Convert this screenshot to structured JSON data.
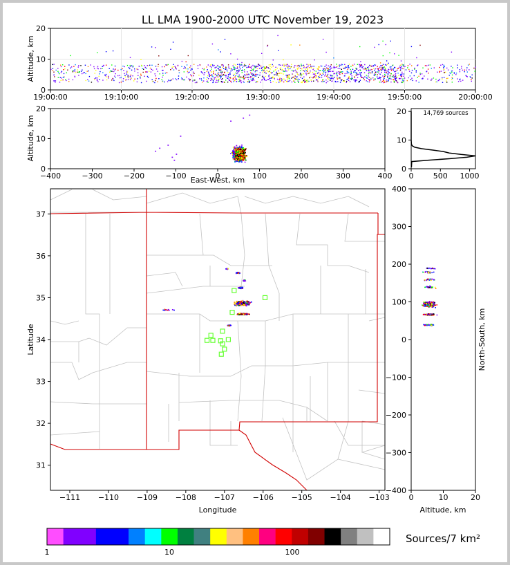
{
  "chart_data": {
    "type": "scatter",
    "title": "LL LMA 1900-2000 UTC November 19, 2023",
    "total_sources": "14,769 sources",
    "panels": {
      "time_height": {
        "ylabel": "Altitude, km",
        "ylim": [
          0,
          20
        ],
        "yticks": [
          "0",
          "10",
          "20"
        ],
        "xlim_minutes": [
          0,
          60
        ],
        "xticks": [
          "19:00:00",
          "19:10:00",
          "19:20:00",
          "19:30:00",
          "19:40:00",
          "19:50:00",
          "20:00:00"
        ],
        "activity_minutes": [
          0,
          60
        ],
        "altitude_band_km": [
          2,
          9
        ]
      },
      "ew_height": {
        "xlabel": "East-West, km",
        "ylabel": "Altitude, km",
        "xlim": [
          -400,
          400
        ],
        "xticks": [
          "−400",
          "−300",
          "−200",
          "−100",
          "0",
          "100",
          "200",
          "300",
          "400"
        ],
        "ylim": [
          0,
          20
        ],
        "yticks": [
          "0",
          "10",
          "20"
        ],
        "core_ew_km": [
          20,
          80
        ],
        "core_alt_km": [
          1,
          10
        ]
      },
      "height_histogram": {
        "xlim": [
          0,
          1100
        ],
        "xticks": [
          "0",
          "500",
          "1000"
        ],
        "ylim": [
          0,
          21
        ],
        "yticks": [
          "0",
          "10",
          "20"
        ],
        "profile": [
          {
            "alt": 0.5,
            "count": 5
          },
          {
            "alt": 2.5,
            "count": 10
          },
          {
            "alt": 3.0,
            "count": 300
          },
          {
            "alt": 3.5,
            "count": 650
          },
          {
            "alt": 4.0,
            "count": 950
          },
          {
            "alt": 4.5,
            "count": 1100
          },
          {
            "alt": 5.0,
            "count": 850
          },
          {
            "alt": 5.5,
            "count": 650
          },
          {
            "alt": 6.0,
            "count": 550
          },
          {
            "alt": 6.5,
            "count": 380
          },
          {
            "alt": 7.0,
            "count": 180
          },
          {
            "alt": 7.5,
            "count": 60
          },
          {
            "alt": 8.0,
            "count": 20
          },
          {
            "alt": 8.5,
            "count": 5
          },
          {
            "alt": 10.0,
            "count": 0
          },
          {
            "alt": 20.0,
            "count": 0
          }
        ]
      },
      "plan_view": {
        "xlabel": "Longitude",
        "ylabel": "Latitude",
        "xlim": [
          -111.5,
          -102.85
        ],
        "xticks": [
          "−111",
          "−110",
          "−109",
          "−108",
          "−107",
          "−106",
          "−105",
          "−104",
          "−103"
        ],
        "ylim": [
          30.4,
          37.6
        ],
        "yticks": [
          "31",
          "32",
          "33",
          "34",
          "35",
          "36",
          "37"
        ],
        "stations": [
          [
            -107.35,
            34.1
          ],
          [
            -107.45,
            33.98
          ],
          [
            -107.3,
            33.98
          ],
          [
            -107.1,
            33.97
          ],
          [
            -106.9,
            34.0
          ],
          [
            -107.05,
            34.2
          ],
          [
            -107.05,
            33.9
          ],
          [
            -107.0,
            33.77
          ],
          [
            -107.08,
            33.65
          ],
          [
            -106.8,
            34.65
          ],
          [
            -106.75,
            35.17
          ],
          [
            -105.95,
            35.0
          ]
        ]
      },
      "ns_height": {
        "xlabel": "Altitude, km",
        "ylabel": "North-South, km",
        "xlim": [
          0,
          20
        ],
        "xticks": [
          "0",
          "10",
          "20"
        ],
        "ylim": [
          -400,
          400
        ],
        "yticks": [
          "−400",
          "−300",
          "−200",
          "−100",
          "0",
          "100",
          "200",
          "300",
          "400"
        ]
      }
    },
    "colorbar": {
      "label": "Sources/7 km²",
      "ticks": [
        "1",
        "10",
        "100"
      ],
      "colors": [
        "#ff4dff",
        "#8000ff",
        "#8000ff",
        "#0000ff",
        "#0000ff",
        "#0080ff",
        "#00ffff",
        "#00ff00",
        "#008040",
        "#408080",
        "#ffff00",
        "#ffc080",
        "#ff8000",
        "#ff0080",
        "#ff0000",
        "#c00000",
        "#800000",
        "#000000",
        "#808080",
        "#c0c0c0",
        "#ffffff"
      ]
    }
  }
}
